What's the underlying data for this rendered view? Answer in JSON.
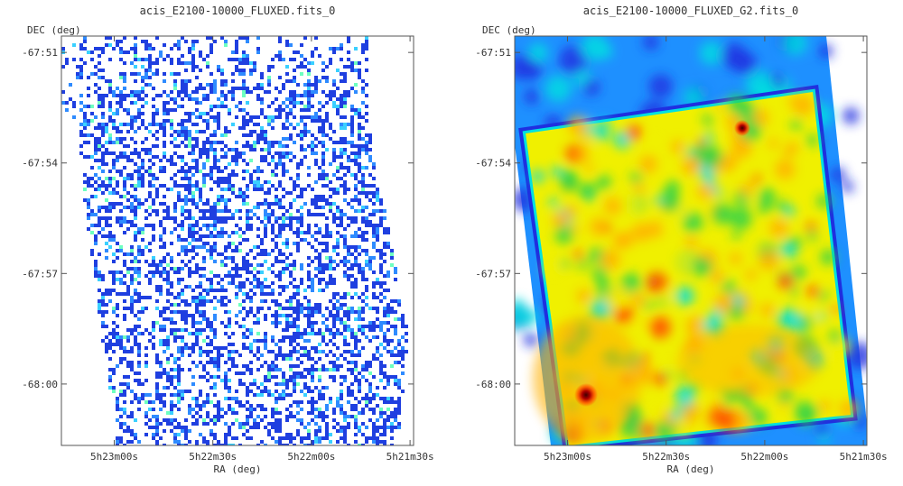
{
  "chart_data": [
    {
      "type": "heatmap",
      "title": "acis_E2100-10000_FLUXED.fits_0",
      "xlabel": "RA (deg)",
      "ylabel": "DEC (deg)",
      "x_ticks": [
        "5h23m00s",
        "5h22m30s",
        "5h22m00s",
        "5h21m30s"
      ],
      "y_ticks": [
        "-67:51",
        "-67:54",
        "-67:57",
        "-68:00"
      ],
      "style": "sparse",
      "colors": [
        "#1f3fe0",
        "#2e8bff",
        "#3ad0ff",
        "#6dffc0"
      ]
    },
    {
      "type": "heatmap",
      "title": "acis_E2100-10000_FLUXED_G2.fits_0",
      "xlabel": "RA (deg)",
      "ylabel": "DEC (deg)",
      "x_ticks": [
        "5h23m00s",
        "5h22m30s",
        "5h22m00s",
        "5h21m30s"
      ],
      "y_ticks": [
        "-67:51",
        "-67:54",
        "-67:57",
        "-68:00"
      ],
      "style": "smooth",
      "colors": [
        "#1f2fe0",
        "#1e90ff",
        "#00e0e0",
        "#28d24a",
        "#f0f000",
        "#ffb000",
        "#ff4a00",
        "#8b0000"
      ]
    }
  ]
}
